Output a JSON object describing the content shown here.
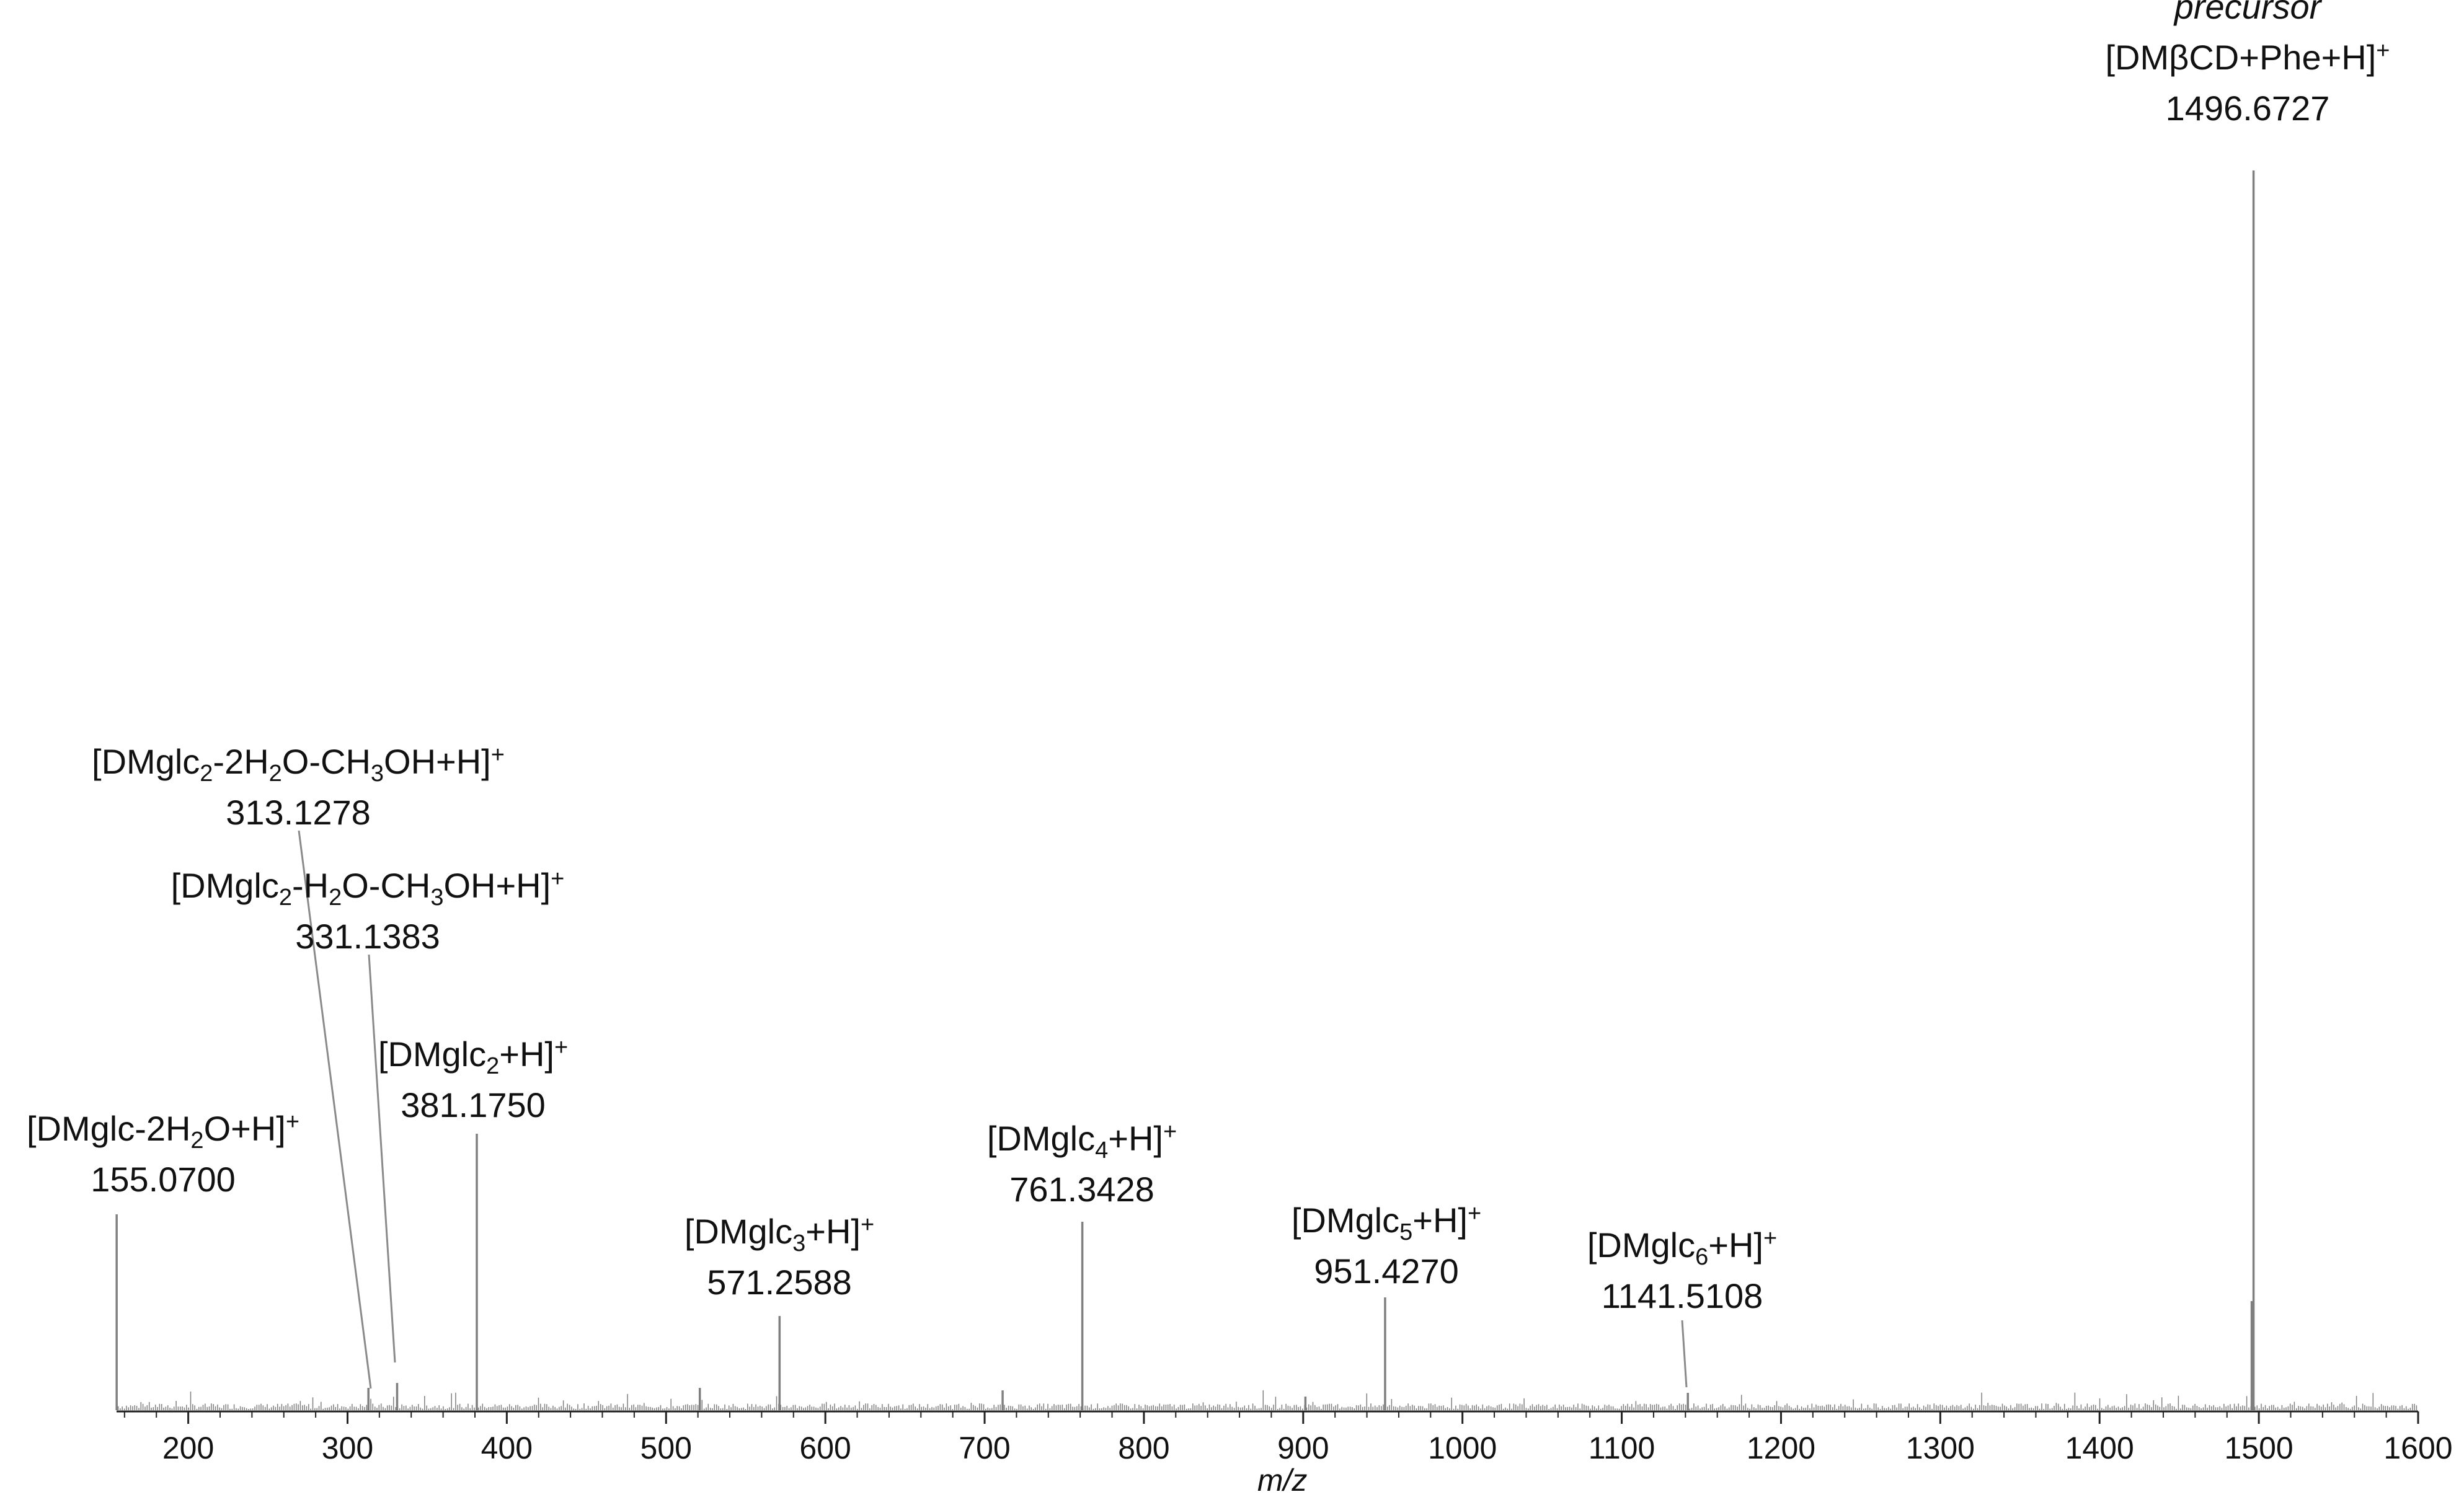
{
  "chart_data": {
    "type": "bar",
    "subtype": "mass-spectrum-stick",
    "xlabel": "m/z",
    "ylabel": "",
    "xlim": [
      155,
      1600
    ],
    "x_ticks": [
      200,
      300,
      400,
      500,
      600,
      700,
      800,
      900,
      1000,
      1100,
      1200,
      1300,
      1400,
      1500,
      1600
    ],
    "grid": false,
    "relative_intensity_scale": [
      0,
      100
    ],
    "peaks": [
      {
        "mz": 155.07,
        "intensity": 15.8,
        "annotated": true
      },
      {
        "mz": 313.1278,
        "intensity": 1.8,
        "annotated": true
      },
      {
        "mz": 331.1383,
        "intensity": 2.2,
        "annotated": true
      },
      {
        "mz": 381.175,
        "intensity": 22.3,
        "annotated": true
      },
      {
        "mz": 521.2,
        "intensity": 1.8,
        "annotated": false
      },
      {
        "mz": 571.2588,
        "intensity": 7.6,
        "annotated": true
      },
      {
        "mz": 711.3,
        "intensity": 1.6,
        "annotated": false
      },
      {
        "mz": 761.3428,
        "intensity": 15.2,
        "annotated": true
      },
      {
        "mz": 901.4,
        "intensity": 1.1,
        "annotated": false
      },
      {
        "mz": 951.427,
        "intensity": 9.1,
        "annotated": true
      },
      {
        "mz": 1141.5108,
        "intensity": 1.4,
        "annotated": true
      },
      {
        "mz": 1496.6727,
        "intensity": 100,
        "annotated": true
      },
      {
        "mz": 1495.5,
        "intensity": 8.8,
        "annotated": false
      }
    ],
    "annotations": [
      {
        "mz": 155.07,
        "pre": "[DMglc-2H",
        "s1": "2",
        "mid": "O+H]",
        "s2": "",
        "tail": "",
        "value": "155.0700",
        "italic": ""
      },
      {
        "mz": 313.1278,
        "pre": "[DMglc",
        "s1": "2",
        "mid": "-2H",
        "s2": "2",
        "tail": "O-CH",
        "s3": "3",
        "end": "OH+H]",
        "value": "313.1278",
        "italic": ""
      },
      {
        "mz": 331.1383,
        "pre": "[DMglc",
        "s1": "2",
        "mid": "-H",
        "s2": "2",
        "tail": "O-CH",
        "s3": "3",
        "end": "OH+H]",
        "value": "331.1383",
        "italic": ""
      },
      {
        "mz": 381.175,
        "pre": "[DMglc",
        "s1": "2",
        "mid": "+H]",
        "value": "381.1750",
        "italic": ""
      },
      {
        "mz": 571.2588,
        "pre": "[DMglc",
        "s1": "3",
        "mid": "+H]",
        "value": "571.2588",
        "italic": ""
      },
      {
        "mz": 761.3428,
        "pre": "[DMglc",
        "s1": "4",
        "mid": "+H]",
        "value": "761.3428",
        "italic": ""
      },
      {
        "mz": 951.427,
        "pre": "[DMglc",
        "s1": "5",
        "mid": "+H]",
        "value": "951.4270",
        "italic": ""
      },
      {
        "mz": 1141.5108,
        "pre": "[DMglc",
        "s1": "6",
        "mid": "+H]",
        "value": "1141.5108",
        "italic": ""
      },
      {
        "mz": 1496.6727,
        "pre": "[DMβCD+Phe+H]",
        "value": "1496.6727",
        "italic": "precursor"
      }
    ],
    "charge_sign": "+",
    "colors": {
      "peaks": "#7f7f7f",
      "axis": "#222222",
      "text": "#111111",
      "leader": "#8a8a8a"
    }
  }
}
